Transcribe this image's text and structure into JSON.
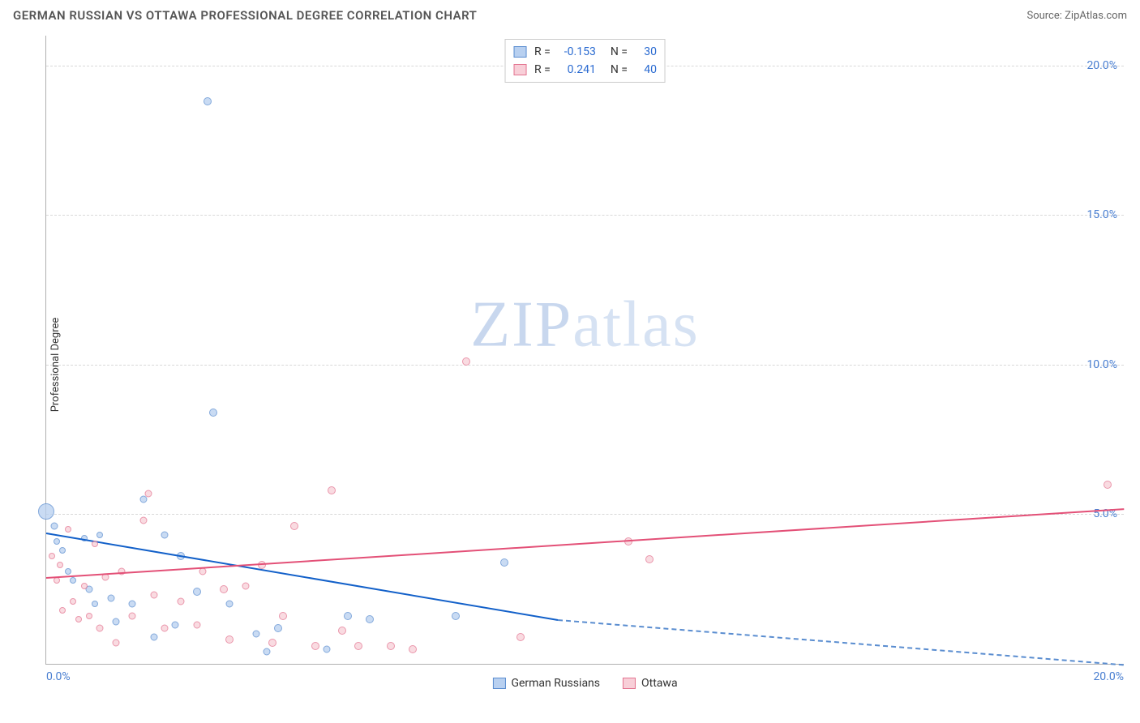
{
  "title": "GERMAN RUSSIAN VS OTTAWA PROFESSIONAL DEGREE CORRELATION CHART",
  "source_label": "Source: ZipAtlas.com",
  "ylabel": "Professional Degree",
  "watermark_a": "ZIP",
  "watermark_b": "atlas",
  "chart": {
    "type": "scatter",
    "background_color": "#ffffff",
    "grid_color": "#d8d8d8",
    "axis_color": "#b0b0b0",
    "tick_color": "#4a7fd1",
    "tick_fontsize": 14,
    "xlim": [
      0,
      20
    ],
    "ylim": [
      0,
      21
    ],
    "yticks": [
      5,
      10,
      15,
      20
    ],
    "ytick_labels": [
      "5.0%",
      "10.0%",
      "15.0%",
      "20.0%"
    ],
    "xticks": [
      0,
      20
    ],
    "xtick_labels": [
      "0.0%",
      "20.0%"
    ],
    "series": [
      {
        "id": "german",
        "label": "German Russians",
        "fill": "#b8d0f0",
        "stroke": "#5a8dd0",
        "trend_color": "#1260c9",
        "trend_from": [
          0,
          4.4
        ],
        "trend_to_solid": [
          9.5,
          1.5
        ],
        "trend_to_dash": [
          20,
          0.0
        ],
        "r_label": "R =",
        "r_value": "-0.153",
        "n_label": "N =",
        "n_value": "30",
        "points": [
          [
            0.0,
            5.1,
            20
          ],
          [
            0.15,
            4.6,
            9
          ],
          [
            0.2,
            4.1,
            8
          ],
          [
            0.3,
            3.8,
            8
          ],
          [
            0.4,
            3.1,
            8
          ],
          [
            0.5,
            2.8,
            8
          ],
          [
            0.7,
            4.2,
            8
          ],
          [
            0.8,
            2.5,
            9
          ],
          [
            0.9,
            2.0,
            8
          ],
          [
            1.0,
            4.3,
            8
          ],
          [
            1.2,
            2.2,
            9
          ],
          [
            1.3,
            1.4,
            9
          ],
          [
            1.6,
            2.0,
            9
          ],
          [
            1.8,
            5.5,
            9
          ],
          [
            2.0,
            0.9,
            9
          ],
          [
            2.2,
            4.3,
            9
          ],
          [
            2.4,
            1.3,
            9
          ],
          [
            2.5,
            3.6,
            10
          ],
          [
            2.8,
            2.4,
            10
          ],
          [
            3.0,
            18.8,
            10
          ],
          [
            3.1,
            8.4,
            10
          ],
          [
            3.4,
            2.0,
            9
          ],
          [
            3.9,
            1.0,
            9
          ],
          [
            4.1,
            0.4,
            9
          ],
          [
            4.3,
            1.2,
            10
          ],
          [
            5.2,
            0.5,
            9
          ],
          [
            5.6,
            1.6,
            10
          ],
          [
            6.0,
            1.5,
            10
          ],
          [
            7.6,
            1.6,
            10
          ],
          [
            8.5,
            3.4,
            10
          ]
        ]
      },
      {
        "id": "ottawa",
        "label": "Ottawa",
        "fill": "#f8cfd8",
        "stroke": "#e37490",
        "trend_color": "#e35077",
        "trend_from": [
          0,
          2.9
        ],
        "trend_to_solid": [
          20,
          5.2
        ],
        "r_label": "R =",
        "r_value": "0.241",
        "n_label": "N =",
        "n_value": "40",
        "points": [
          [
            0.1,
            3.6,
            8
          ],
          [
            0.2,
            2.8,
            8
          ],
          [
            0.25,
            3.3,
            8
          ],
          [
            0.3,
            1.8,
            8
          ],
          [
            0.4,
            4.5,
            8
          ],
          [
            0.5,
            2.1,
            8
          ],
          [
            0.6,
            1.5,
            8
          ],
          [
            0.7,
            2.6,
            8
          ],
          [
            0.8,
            1.6,
            8
          ],
          [
            0.9,
            4.0,
            8
          ],
          [
            1.0,
            1.2,
            9
          ],
          [
            1.1,
            2.9,
            9
          ],
          [
            1.3,
            0.7,
            9
          ],
          [
            1.4,
            3.1,
            9
          ],
          [
            1.6,
            1.6,
            9
          ],
          [
            1.8,
            4.8,
            9
          ],
          [
            1.9,
            5.7,
            9
          ],
          [
            2.0,
            2.3,
            9
          ],
          [
            2.2,
            1.2,
            9
          ],
          [
            2.5,
            2.1,
            9
          ],
          [
            2.8,
            1.3,
            9
          ],
          [
            2.9,
            3.1,
            9
          ],
          [
            3.3,
            2.5,
            10
          ],
          [
            3.4,
            0.8,
            10
          ],
          [
            3.7,
            2.6,
            9
          ],
          [
            4.0,
            3.3,
            10
          ],
          [
            4.2,
            0.7,
            10
          ],
          [
            4.4,
            1.6,
            10
          ],
          [
            4.6,
            4.6,
            10
          ],
          [
            5.0,
            0.6,
            10
          ],
          [
            5.3,
            5.8,
            10
          ],
          [
            5.5,
            1.1,
            10
          ],
          [
            5.8,
            0.6,
            10
          ],
          [
            6.4,
            0.6,
            10
          ],
          [
            6.8,
            0.5,
            10
          ],
          [
            7.8,
            10.1,
            10
          ],
          [
            8.8,
            0.9,
            10
          ],
          [
            10.8,
            4.1,
            10
          ],
          [
            11.2,
            3.5,
            10
          ],
          [
            19.7,
            6.0,
            10
          ]
        ]
      }
    ]
  }
}
